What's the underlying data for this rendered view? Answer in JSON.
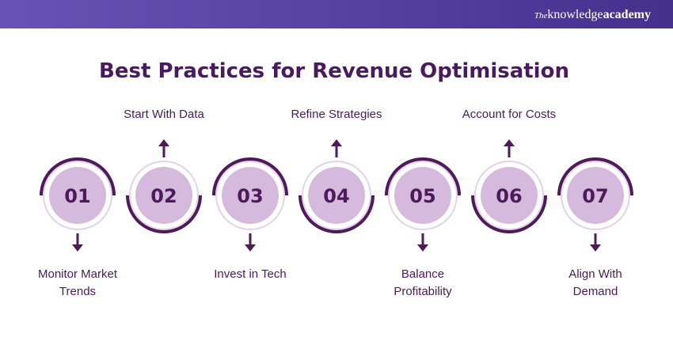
{
  "header": {
    "brand": {
      "prefix": "The",
      "name": "knowledge",
      "suffix": "academy"
    }
  },
  "title": "Best Practices for Revenue Optimisation",
  "steps": [
    {
      "number": "01",
      "label": [
        "Monitor Market",
        "Trends"
      ]
    },
    {
      "number": "02",
      "label": [
        "Start With Data"
      ]
    },
    {
      "number": "03",
      "label": [
        "Invest in Tech"
      ]
    },
    {
      "number": "04",
      "label": [
        "Refine Strategies"
      ]
    },
    {
      "number": "05",
      "label": [
        "Balance",
        "Profitability"
      ]
    },
    {
      "number": "06",
      "label": [
        "Account for Costs"
      ]
    },
    {
      "number": "07",
      "label": [
        "Align With",
        "Demand"
      ]
    }
  ]
}
